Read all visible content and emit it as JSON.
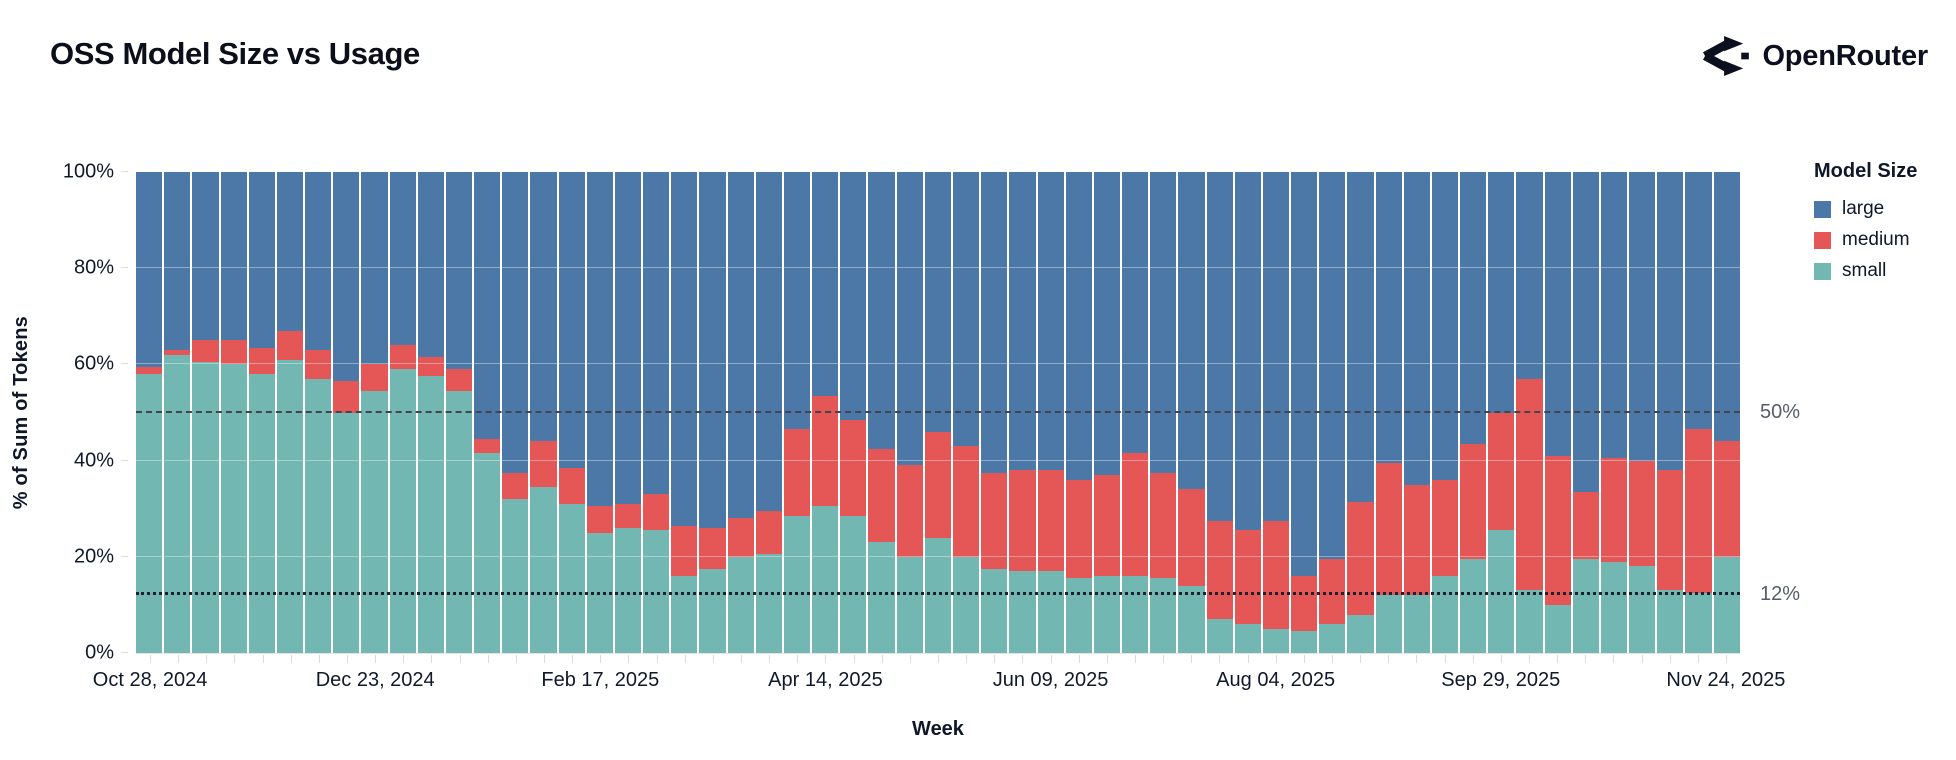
{
  "header": {
    "title": "OSS Model Size vs Usage",
    "brand": "OpenRouter"
  },
  "axes": {
    "y_title": "% of Sum of Tokens",
    "x_title": "Week",
    "y_ticks": [
      "0%",
      "20%",
      "40%",
      "60%",
      "80%",
      "100%"
    ]
  },
  "legend": {
    "title": "Model Size",
    "items": [
      {
        "label": "large",
        "color": "#4c78a8"
      },
      {
        "label": "medium",
        "color": "#e45756"
      },
      {
        "label": "small",
        "color": "#72b7b2"
      }
    ]
  },
  "chart_data": {
    "type": "bar",
    "stacked": true,
    "title": "OSS Model Size vs Usage",
    "xlabel": "Week",
    "ylabel": "% of Sum of Tokens",
    "ylim": [
      0,
      100
    ],
    "grid_values": [
      20,
      40,
      60,
      80
    ],
    "legend_position": "right",
    "colors": {
      "large": "#4c78a8",
      "medium": "#e45756",
      "small": "#72b7b2"
    },
    "stack_order_bottom_to_top": [
      "small",
      "medium",
      "large"
    ],
    "ref_lines": [
      {
        "value": 50,
        "label": "50%",
        "style": "dashed"
      },
      {
        "value": 12,
        "label": "12%",
        "style": "dotted"
      }
    ],
    "x_tick_labels": [
      {
        "index": 0,
        "label": "Oct 28, 2024"
      },
      {
        "index": 8,
        "label": "Dec 23, 2024"
      },
      {
        "index": 16,
        "label": "Feb 17, 2025"
      },
      {
        "index": 24,
        "label": "Apr 14, 2025"
      },
      {
        "index": 32,
        "label": "Jun 09, 2025"
      },
      {
        "index": 40,
        "label": "Aug 04, 2025"
      },
      {
        "index": 48,
        "label": "Sep 29, 2025"
      },
      {
        "index": 56,
        "label": "Nov 24, 2025"
      }
    ],
    "weeks": [
      {
        "date": "Oct 28, 2024",
        "small": 58,
        "medium": 1.5,
        "large": 40.5
      },
      {
        "date": "Nov 04, 2024",
        "small": 62,
        "medium": 1,
        "large": 37
      },
      {
        "date": "Nov 11, 2024",
        "small": 60.5,
        "medium": 4.5,
        "large": 35
      },
      {
        "date": "Nov 18, 2024",
        "small": 60,
        "medium": 5,
        "large": 35
      },
      {
        "date": "Nov 25, 2024",
        "small": 58,
        "medium": 5.5,
        "large": 36.5
      },
      {
        "date": "Dec 02, 2024",
        "small": 61,
        "medium": 6,
        "large": 33
      },
      {
        "date": "Dec 09, 2024",
        "small": 57,
        "medium": 6,
        "large": 37
      },
      {
        "date": "Dec 16, 2024",
        "small": 50,
        "medium": 6.5,
        "large": 43.5
      },
      {
        "date": "Dec 23, 2024",
        "small": 54.5,
        "medium": 5.5,
        "large": 40
      },
      {
        "date": "Dec 30, 2024",
        "small": 59,
        "medium": 5,
        "large": 36
      },
      {
        "date": "Jan 06, 2025",
        "small": 57.5,
        "medium": 4,
        "large": 38.5
      },
      {
        "date": "Jan 13, 2025",
        "small": 54.5,
        "medium": 4.5,
        "large": 41
      },
      {
        "date": "Jan 20, 2025",
        "small": 41.5,
        "medium": 3,
        "large": 55.5
      },
      {
        "date": "Jan 27, 2025",
        "small": 32,
        "medium": 5.5,
        "large": 62.5
      },
      {
        "date": "Feb 03, 2025",
        "small": 34.5,
        "medium": 9.5,
        "large": 56
      },
      {
        "date": "Feb 10, 2025",
        "small": 31,
        "medium": 7.5,
        "large": 61.5
      },
      {
        "date": "Feb 17, 2025",
        "small": 25,
        "medium": 5.5,
        "large": 69.5
      },
      {
        "date": "Feb 24, 2025",
        "small": 26,
        "medium": 5,
        "large": 69
      },
      {
        "date": "Mar 03, 2025",
        "small": 25.5,
        "medium": 7.5,
        "large": 67
      },
      {
        "date": "Mar 10, 2025",
        "small": 16,
        "medium": 10.5,
        "large": 73.5
      },
      {
        "date": "Mar 17, 2025",
        "small": 17.5,
        "medium": 8.5,
        "large": 74
      },
      {
        "date": "Mar 24, 2025",
        "small": 20,
        "medium": 8,
        "large": 72
      },
      {
        "date": "Mar 31, 2025",
        "small": 20.5,
        "medium": 9,
        "large": 70.5
      },
      {
        "date": "Apr 07, 2025",
        "small": 28.5,
        "medium": 18,
        "large": 53.5
      },
      {
        "date": "Apr 14, 2025",
        "small": 30.5,
        "medium": 23,
        "large": 46.5
      },
      {
        "date": "Apr 21, 2025",
        "small": 28.5,
        "medium": 20,
        "large": 51.5
      },
      {
        "date": "Apr 28, 2025",
        "small": 23,
        "medium": 19.5,
        "large": 57.5
      },
      {
        "date": "May 05, 2025",
        "small": 20,
        "medium": 19,
        "large": 61
      },
      {
        "date": "May 12, 2025",
        "small": 24,
        "medium": 22,
        "large": 54
      },
      {
        "date": "May 19, 2025",
        "small": 20,
        "medium": 23,
        "large": 57
      },
      {
        "date": "May 26, 2025",
        "small": 17.5,
        "medium": 20,
        "large": 62.5
      },
      {
        "date": "Jun 02, 2025",
        "small": 17,
        "medium": 21,
        "large": 62
      },
      {
        "date": "Jun 09, 2025",
        "small": 17,
        "medium": 21,
        "large": 62
      },
      {
        "date": "Jun 16, 2025",
        "small": 15.5,
        "medium": 20.5,
        "large": 64
      },
      {
        "date": "Jun 23, 2025",
        "small": 16,
        "medium": 21,
        "large": 63
      },
      {
        "date": "Jun 30, 2025",
        "small": 16,
        "medium": 25.5,
        "large": 58.5
      },
      {
        "date": "Jul 07, 2025",
        "small": 15.5,
        "medium": 22,
        "large": 62.5
      },
      {
        "date": "Jul 14, 2025",
        "small": 14,
        "medium": 20,
        "large": 66
      },
      {
        "date": "Jul 21, 2025",
        "small": 7,
        "medium": 20.5,
        "large": 72.5
      },
      {
        "date": "Jul 28, 2025",
        "small": 6,
        "medium": 19.5,
        "large": 74.5
      },
      {
        "date": "Aug 04, 2025",
        "small": 5,
        "medium": 22.5,
        "large": 72.5
      },
      {
        "date": "Aug 11, 2025",
        "small": 4.5,
        "medium": 11.5,
        "large": 84
      },
      {
        "date": "Aug 18, 2025",
        "small": 6,
        "medium": 13.5,
        "large": 80.5
      },
      {
        "date": "Aug 25, 2025",
        "small": 8,
        "medium": 23.5,
        "large": 68.5
      },
      {
        "date": "Sep 01, 2025",
        "small": 12,
        "medium": 27.5,
        "large": 60.5
      },
      {
        "date": "Sep 08, 2025",
        "small": 12,
        "medium": 23,
        "large": 65
      },
      {
        "date": "Sep 15, 2025",
        "small": 16,
        "medium": 20,
        "large": 64
      },
      {
        "date": "Sep 22, 2025",
        "small": 19.5,
        "medium": 24,
        "large": 56.5
      },
      {
        "date": "Sep 29, 2025",
        "small": 25.5,
        "medium": 24.5,
        "large": 50
      },
      {
        "date": "Oct 06, 2025",
        "small": 13,
        "medium": 44,
        "large": 43
      },
      {
        "date": "Oct 13, 2025",
        "small": 10,
        "medium": 31,
        "large": 59
      },
      {
        "date": "Oct 20, 2025",
        "small": 19.5,
        "medium": 14,
        "large": 66.5
      },
      {
        "date": "Oct 27, 2025",
        "small": 19,
        "medium": 21.5,
        "large": 59.5
      },
      {
        "date": "Nov 03, 2025",
        "small": 18,
        "medium": 22,
        "large": 60
      },
      {
        "date": "Nov 10, 2025",
        "small": 13,
        "medium": 25,
        "large": 62
      },
      {
        "date": "Nov 17, 2025",
        "small": 12.5,
        "medium": 34,
        "large": 53.5
      },
      {
        "date": "Nov 24, 2025",
        "small": 20,
        "medium": 24,
        "large": 56
      }
    ]
  }
}
